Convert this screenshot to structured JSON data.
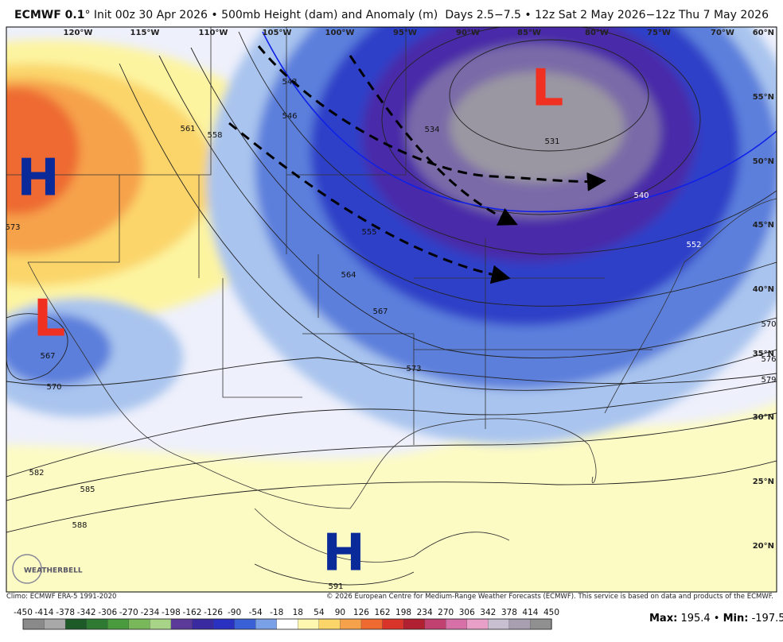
{
  "header": {
    "model": "ECMWF 0.1",
    "title": "° Init 00z 30 Apr 2026 • 500mb Height (dam) and Anomaly (m)",
    "period": "Days 2.5−7.5 • 12z Sat 2 May 2026−12z Thu 7 May 2026"
  },
  "longitudes": [
    "120°W",
    "115°W",
    "110°W",
    "105°W",
    "100°W",
    "95°W",
    "90°W",
    "85°W",
    "80°W",
    "75°W",
    "70°W"
  ],
  "latitudes": [
    "60°N",
    "55°N",
    "50°N",
    "45°N",
    "40°N",
    "35°N",
    "30°N",
    "25°N",
    "20°N"
  ],
  "contour_labels": [
    "543",
    "546",
    "534",
    "531",
    "540",
    "561",
    "558",
    "573",
    "555",
    "552",
    "564",
    "567",
    "570",
    "567",
    "570",
    "573",
    "576",
    "579",
    "582",
    "585",
    "588",
    "591"
  ],
  "systems": [
    {
      "label": "H",
      "color": "#0a2a9a"
    },
    {
      "label": "L",
      "color": "#f03020"
    },
    {
      "label": "L",
      "color": "#f03020"
    },
    {
      "label": "H",
      "color": "#0a2a9a"
    }
  ],
  "logo": "WEATHERBELL",
  "footer": {
    "climo": "Climo: ECMWF ERA-5 1991-2020",
    "copyright": "© 2026 European Centre for Medium-Range Weather Forecasts (ECMWF). This service is based on data and products of the ECMWF."
  },
  "colorbar": {
    "ticks": [
      -450,
      -414,
      -378,
      -342,
      -306,
      -270,
      -234,
      -198,
      -162,
      -126,
      -90,
      -54,
      -18,
      18,
      54,
      90,
      126,
      162,
      198,
      234,
      270,
      306,
      342,
      378,
      414,
      450
    ],
    "colors": [
      "#8a8a8a",
      "#a8a8a8",
      "#1e5a28",
      "#2f7a32",
      "#4a9a3e",
      "#78b85a",
      "#a8d488",
      "#5b3a9a",
      "#3a2aa0",
      "#2a30c0",
      "#3a60d8",
      "#7aa0e8",
      "#ffffff",
      "#fdf7b0",
      "#fbd56a",
      "#f6a24c",
      "#ee6a30",
      "#d8342a",
      "#b02030",
      "#c04070",
      "#d870a8",
      "#e8a0c8",
      "#c8c0d0",
      "#a8a0b0",
      "#909090"
    ]
  },
  "extremes": {
    "max_label": "Max:",
    "max": 195.4,
    "min_label": "Min:",
    "min": -197.5
  }
}
